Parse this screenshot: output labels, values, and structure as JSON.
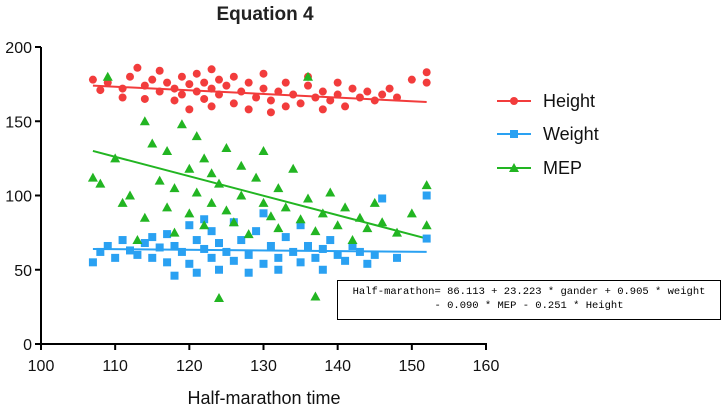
{
  "chart_data": {
    "type": "scatter",
    "title": "Equation 4",
    "xlabel": "Half-marathon time",
    "ylabel": "",
    "xlim": [
      100,
      160
    ],
    "ylim": [
      0,
      200
    ],
    "xticks": [
      100,
      110,
      120,
      130,
      140,
      150,
      160
    ],
    "yticks": [
      0,
      50,
      100,
      150,
      200
    ],
    "legend_position": "right",
    "series": [
      {
        "name": "Height",
        "marker": "circle",
        "color": "#f23c3c",
        "fit_line": {
          "x": [
            107,
            152
          ],
          "y": [
            174,
            163
          ]
        },
        "points": [
          {
            "x": 107,
            "y": 178
          },
          {
            "x": 108,
            "y": 171
          },
          {
            "x": 109,
            "y": 176
          },
          {
            "x": 111,
            "y": 172
          },
          {
            "x": 111,
            "y": 166
          },
          {
            "x": 112,
            "y": 180
          },
          {
            "x": 113,
            "y": 186
          },
          {
            "x": 114,
            "y": 174
          },
          {
            "x": 114,
            "y": 165
          },
          {
            "x": 115,
            "y": 178
          },
          {
            "x": 116,
            "y": 170
          },
          {
            "x": 116,
            "y": 184
          },
          {
            "x": 117,
            "y": 176
          },
          {
            "x": 118,
            "y": 164
          },
          {
            "x": 118,
            "y": 172
          },
          {
            "x": 119,
            "y": 180
          },
          {
            "x": 119,
            "y": 168
          },
          {
            "x": 120,
            "y": 175
          },
          {
            "x": 120,
            "y": 158
          },
          {
            "x": 121,
            "y": 182
          },
          {
            "x": 121,
            "y": 170
          },
          {
            "x": 122,
            "y": 176
          },
          {
            "x": 122,
            "y": 165
          },
          {
            "x": 123,
            "y": 185
          },
          {
            "x": 123,
            "y": 172
          },
          {
            "x": 123,
            "y": 160
          },
          {
            "x": 124,
            "y": 178
          },
          {
            "x": 124,
            "y": 168
          },
          {
            "x": 125,
            "y": 174
          },
          {
            "x": 126,
            "y": 180
          },
          {
            "x": 126,
            "y": 162
          },
          {
            "x": 127,
            "y": 170
          },
          {
            "x": 128,
            "y": 176
          },
          {
            "x": 128,
            "y": 158
          },
          {
            "x": 129,
            "y": 166
          },
          {
            "x": 130,
            "y": 182
          },
          {
            "x": 130,
            "y": 172
          },
          {
            "x": 131,
            "y": 164
          },
          {
            "x": 131,
            "y": 156
          },
          {
            "x": 132,
            "y": 170
          },
          {
            "x": 133,
            "y": 176
          },
          {
            "x": 133,
            "y": 160
          },
          {
            "x": 134,
            "y": 168
          },
          {
            "x": 135,
            "y": 162
          },
          {
            "x": 136,
            "y": 174
          },
          {
            "x": 136,
            "y": 180
          },
          {
            "x": 137,
            "y": 166
          },
          {
            "x": 138,
            "y": 158
          },
          {
            "x": 138,
            "y": 170
          },
          {
            "x": 139,
            "y": 164
          },
          {
            "x": 140,
            "y": 176
          },
          {
            "x": 140,
            "y": 168
          },
          {
            "x": 141,
            "y": 160
          },
          {
            "x": 142,
            "y": 172
          },
          {
            "x": 143,
            "y": 166
          },
          {
            "x": 144,
            "y": 170
          },
          {
            "x": 145,
            "y": 164
          },
          {
            "x": 146,
            "y": 168
          },
          {
            "x": 147,
            "y": 172
          },
          {
            "x": 148,
            "y": 166
          },
          {
            "x": 150,
            "y": 178
          },
          {
            "x": 152,
            "y": 183
          },
          {
            "x": 152,
            "y": 176
          }
        ]
      },
      {
        "name": "Weight",
        "marker": "square",
        "color": "#2aa1f2",
        "fit_line": {
          "x": [
            107,
            152
          ],
          "y": [
            64,
            62
          ]
        },
        "points": [
          {
            "x": 107,
            "y": 55
          },
          {
            "x": 108,
            "y": 62
          },
          {
            "x": 109,
            "y": 66
          },
          {
            "x": 110,
            "y": 58
          },
          {
            "x": 111,
            "y": 70
          },
          {
            "x": 112,
            "y": 63
          },
          {
            "x": 113,
            "y": 60
          },
          {
            "x": 114,
            "y": 68
          },
          {
            "x": 115,
            "y": 72
          },
          {
            "x": 115,
            "y": 58
          },
          {
            "x": 116,
            "y": 65
          },
          {
            "x": 117,
            "y": 55
          },
          {
            "x": 117,
            "y": 74
          },
          {
            "x": 118,
            "y": 46
          },
          {
            "x": 118,
            "y": 66
          },
          {
            "x": 119,
            "y": 62
          },
          {
            "x": 120,
            "y": 80
          },
          {
            "x": 120,
            "y": 54
          },
          {
            "x": 121,
            "y": 70
          },
          {
            "x": 121,
            "y": 48
          },
          {
            "x": 122,
            "y": 84
          },
          {
            "x": 122,
            "y": 64
          },
          {
            "x": 123,
            "y": 58
          },
          {
            "x": 123,
            "y": 76
          },
          {
            "x": 124,
            "y": 68
          },
          {
            "x": 124,
            "y": 50
          },
          {
            "x": 125,
            "y": 62
          },
          {
            "x": 126,
            "y": 82
          },
          {
            "x": 126,
            "y": 56
          },
          {
            "x": 127,
            "y": 70
          },
          {
            "x": 128,
            "y": 60
          },
          {
            "x": 128,
            "y": 48
          },
          {
            "x": 129,
            "y": 76
          },
          {
            "x": 130,
            "y": 88
          },
          {
            "x": 130,
            "y": 54
          },
          {
            "x": 131,
            "y": 66
          },
          {
            "x": 132,
            "y": 58
          },
          {
            "x": 132,
            "y": 50
          },
          {
            "x": 133,
            "y": 72
          },
          {
            "x": 134,
            "y": 62
          },
          {
            "x": 135,
            "y": 80
          },
          {
            "x": 135,
            "y": 55
          },
          {
            "x": 136,
            "y": 66
          },
          {
            "x": 137,
            "y": 58
          },
          {
            "x": 138,
            "y": 64
          },
          {
            "x": 138,
            "y": 50
          },
          {
            "x": 139,
            "y": 70
          },
          {
            "x": 140,
            "y": 60
          },
          {
            "x": 141,
            "y": 56
          },
          {
            "x": 142,
            "y": 66
          },
          {
            "x": 143,
            "y": 62
          },
          {
            "x": 144,
            "y": 54
          },
          {
            "x": 145,
            "y": 60
          },
          {
            "x": 146,
            "y": 98
          },
          {
            "x": 148,
            "y": 58
          },
          {
            "x": 152,
            "y": 100
          },
          {
            "x": 152,
            "y": 71
          }
        ]
      },
      {
        "name": "MEP",
        "marker": "triangle",
        "color": "#22b522",
        "fit_line": {
          "x": [
            107,
            152
          ],
          "y": [
            130,
            71
          ]
        },
        "points": [
          {
            "x": 107,
            "y": 112
          },
          {
            "x": 108,
            "y": 108
          },
          {
            "x": 109,
            "y": 180
          },
          {
            "x": 110,
            "y": 125
          },
          {
            "x": 111,
            "y": 95
          },
          {
            "x": 112,
            "y": 100
          },
          {
            "x": 113,
            "y": 70
          },
          {
            "x": 114,
            "y": 150
          },
          {
            "x": 114,
            "y": 85
          },
          {
            "x": 115,
            "y": 135
          },
          {
            "x": 116,
            "y": 110
          },
          {
            "x": 117,
            "y": 92
          },
          {
            "x": 117,
            "y": 130
          },
          {
            "x": 118,
            "y": 75
          },
          {
            "x": 118,
            "y": 105
          },
          {
            "x": 119,
            "y": 148
          },
          {
            "x": 120,
            "y": 118
          },
          {
            "x": 120,
            "y": 88
          },
          {
            "x": 121,
            "y": 140
          },
          {
            "x": 121,
            "y": 102
          },
          {
            "x": 122,
            "y": 125
          },
          {
            "x": 122,
            "y": 80
          },
          {
            "x": 123,
            "y": 95
          },
          {
            "x": 123,
            "y": 115
          },
          {
            "x": 124,
            "y": 31
          },
          {
            "x": 124,
            "y": 108
          },
          {
            "x": 125,
            "y": 132
          },
          {
            "x": 125,
            "y": 90
          },
          {
            "x": 126,
            "y": 82
          },
          {
            "x": 127,
            "y": 120
          },
          {
            "x": 127,
            "y": 100
          },
          {
            "x": 128,
            "y": 74
          },
          {
            "x": 129,
            "y": 112
          },
          {
            "x": 130,
            "y": 95
          },
          {
            "x": 130,
            "y": 130
          },
          {
            "x": 131,
            "y": 86
          },
          {
            "x": 132,
            "y": 105
          },
          {
            "x": 132,
            "y": 78
          },
          {
            "x": 133,
            "y": 92
          },
          {
            "x": 134,
            "y": 118
          },
          {
            "x": 135,
            "y": 84
          },
          {
            "x": 136,
            "y": 98
          },
          {
            "x": 136,
            "y": 180
          },
          {
            "x": 137,
            "y": 76
          },
          {
            "x": 137,
            "y": 32
          },
          {
            "x": 138,
            "y": 88
          },
          {
            "x": 139,
            "y": 102
          },
          {
            "x": 140,
            "y": 80
          },
          {
            "x": 141,
            "y": 92
          },
          {
            "x": 142,
            "y": 70
          },
          {
            "x": 143,
            "y": 85
          },
          {
            "x": 144,
            "y": 78
          },
          {
            "x": 145,
            "y": 95
          },
          {
            "x": 146,
            "y": 82
          },
          {
            "x": 148,
            "y": 75
          },
          {
            "x": 150,
            "y": 88
          },
          {
            "x": 152,
            "y": 107
          },
          {
            "x": 152,
            "y": 80
          }
        ]
      }
    ],
    "annotation": {
      "line1": "Half-marathon= 86.113 + 23.223 * gander + 0.905 * weight",
      "line2": "- 0.090 * MEP - 0.251 * Height"
    }
  }
}
